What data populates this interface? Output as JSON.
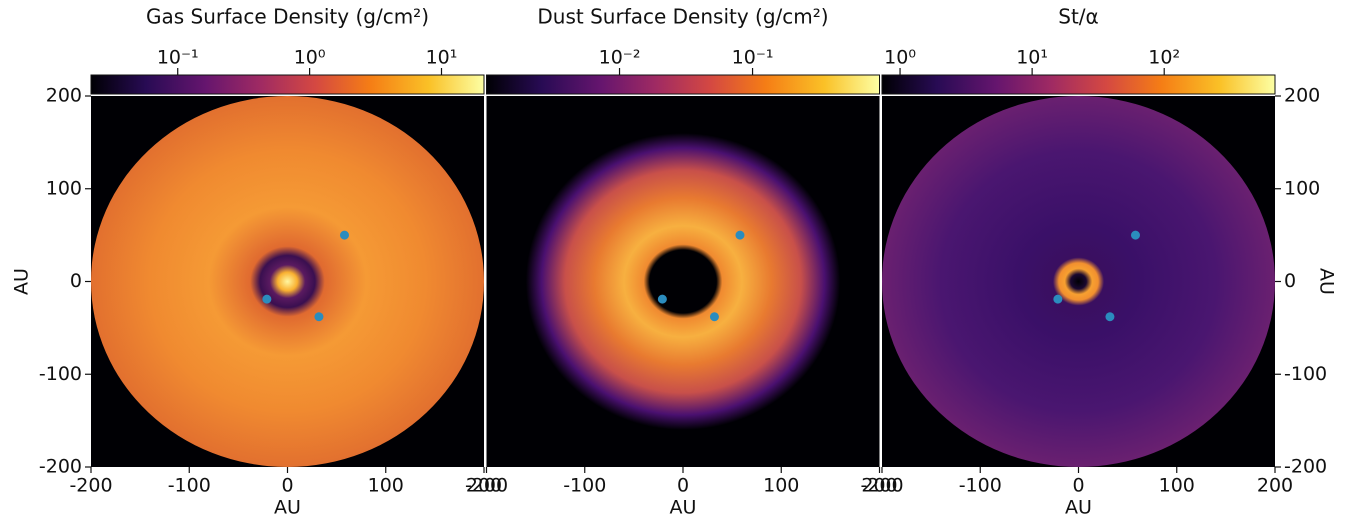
{
  "chart_data": [
    {
      "type": "image",
      "title": "Gas Surface Density (g/cm²)",
      "colorbar": {
        "colormap": "inferno",
        "log_scale": true,
        "lim": [
          0.022,
          21
        ],
        "ticks": [
          {
            "value": 0.1,
            "label": "10⁻¹"
          },
          {
            "value": 1,
            "label": "10⁰"
          },
          {
            "value": 10,
            "label": "10¹"
          }
        ]
      },
      "xlabel": "AU",
      "ylabel": "AU",
      "yaxis_side": "left",
      "xlim": [
        -200,
        200
      ],
      "ylim": [
        -200,
        200
      ],
      "xticks": [
        -200,
        -100,
        0,
        100,
        200
      ],
      "yticks": [
        -200,
        -100,
        0,
        100,
        200
      ],
      "points": {
        "color": "#2b8cbe",
        "x": [
          58,
          -21,
          32
        ],
        "y": [
          50,
          -19,
          -38
        ]
      }
    },
    {
      "type": "image",
      "title": "Dust Surface Density (g/cm²)",
      "colorbar": {
        "colormap": "inferno",
        "log_scale": true,
        "lim": [
          0.001,
          0.9
        ],
        "ticks": [
          {
            "value": 0.01,
            "label": "10⁻²"
          },
          {
            "value": 0.1,
            "label": "10⁻¹"
          }
        ]
      },
      "xlabel": "AU",
      "xlim": [
        -200,
        200
      ],
      "ylim": [
        -200,
        200
      ],
      "xticks": [
        -200,
        -100,
        0,
        100,
        200
      ],
      "points": {
        "color": "#2b8cbe",
        "x": [
          58,
          -21,
          32
        ],
        "y": [
          50,
          -19,
          -38
        ]
      }
    },
    {
      "type": "image",
      "title": "St/α",
      "colorbar": {
        "colormap": "inferno",
        "log_scale": true,
        "lim": [
          0.73,
          690
        ],
        "ticks": [
          {
            "value": 1,
            "label": "10⁰"
          },
          {
            "value": 10,
            "label": "10¹"
          },
          {
            "value": 100,
            "label": "10²"
          }
        ]
      },
      "xlabel": "AU",
      "ylabel": "AU",
      "yaxis_side": "right",
      "xlim": [
        -200,
        200
      ],
      "ylim": [
        -200,
        200
      ],
      "xticks": [
        -200,
        -100,
        0,
        100,
        200
      ],
      "yticks": [
        -200,
        -100,
        0,
        100,
        200
      ],
      "points": {
        "color": "#2b8cbe",
        "x": [
          58,
          -21,
          32
        ],
        "y": [
          50,
          -19,
          -38
        ]
      }
    }
  ]
}
